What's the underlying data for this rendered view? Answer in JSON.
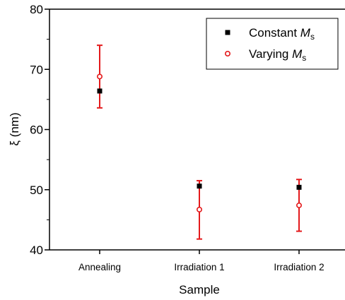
{
  "chart_data": {
    "type": "scatter",
    "title": "",
    "xlabel": "Sample",
    "ylabel": "ξ (nm)",
    "categories": [
      "Annealing",
      "Irradiation 1",
      "Irradiation 2"
    ],
    "ylim": [
      40,
      80
    ],
    "yticks": [
      40,
      50,
      60,
      70,
      80
    ],
    "grid": false,
    "legend_position": "top-right",
    "series": [
      {
        "name": "Constant M_s",
        "legend_text": "Constant ",
        "legend_symbol": "M",
        "legend_subscript": "s",
        "marker": "filled-square",
        "color": "#000000",
        "values": [
          66.4,
          50.6,
          50.4
        ],
        "errors": null
      },
      {
        "name": "Varying M_s",
        "legend_text": "Varying ",
        "legend_symbol": "M",
        "legend_subscript": "s",
        "marker": "open-circle",
        "color": "#e41a1c",
        "values": [
          68.8,
          46.7,
          47.4
        ],
        "errors": [
          [
            63.6,
            74.0
          ],
          [
            41.8,
            51.5
          ],
          [
            43.1,
            51.7
          ]
        ]
      }
    ]
  }
}
